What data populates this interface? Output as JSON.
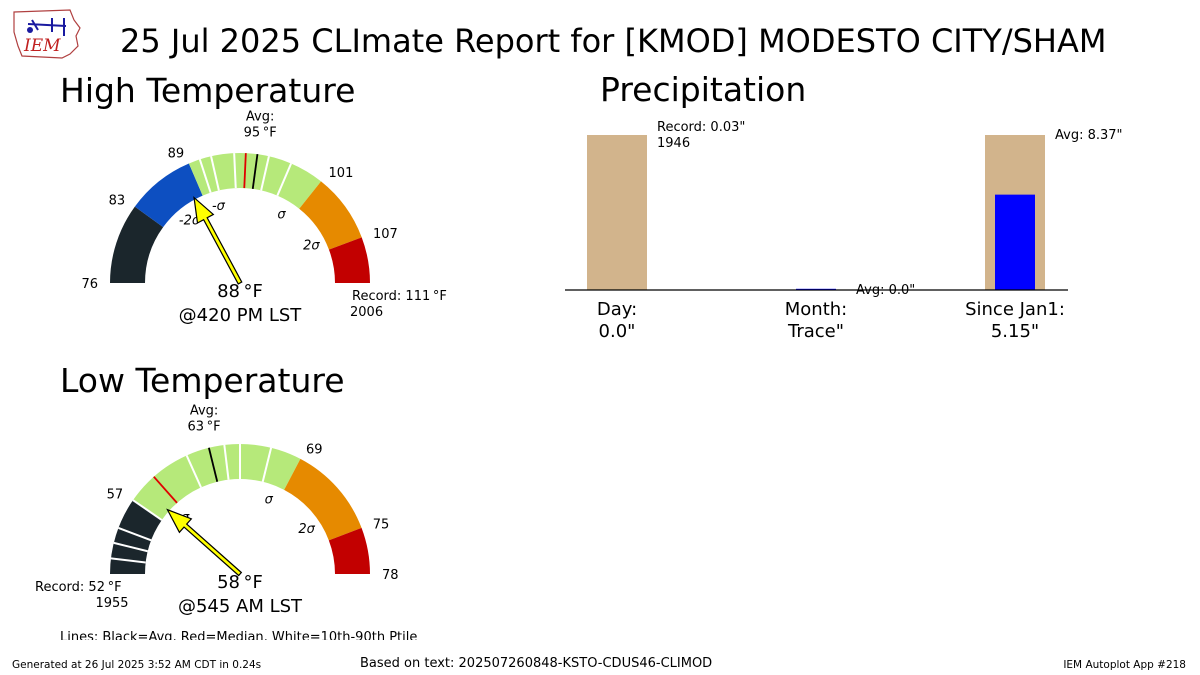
{
  "logo_text": "IEM",
  "title": "25 Jul 2025 CLImate Report for [KMOD] MODESTO CITY/SHAM",
  "footer": {
    "generated": "Generated at 26 Jul 2025 3:52 AM CDT in 0.24s",
    "based_on": "Based on text: 202507260848-KSTO-CDUS46-CLIMOD",
    "app": "IEM Autoplot App #218"
  },
  "legend_note": "Lines: Black=Avg, Red=Median, White=10th-90th Ptile",
  "colors": {
    "below": "#1b262c",
    "minus2sigma": "#0d4fc1",
    "normal": "#b6e97a",
    "plus1sigma": "#e68a00",
    "plus2sigma": "#c20000",
    "needle": "#ffff00",
    "record_bar": "#d2b48c",
    "obs_bar": "#0000ff"
  },
  "chart_data": [
    {
      "type": "gauge",
      "title": "High Temperature",
      "min": 76,
      "max": 111,
      "value": 88,
      "value_label": "88$^\\circ$F",
      "value_text": "88 °F",
      "time_text": "@420 PM LST",
      "avg": 95,
      "avg_label_lines": [
        "Avg:",
        "95 °F"
      ],
      "median": 94,
      "percentile_lines": [
        90,
        91,
        93,
        96,
        98
      ],
      "bands": [
        {
          "from": 76,
          "to": 83,
          "color": "below"
        },
        {
          "from": 83,
          "to": 89,
          "color": "minus2sigma"
        },
        {
          "from": 89,
          "to": 101,
          "color": "normal"
        },
        {
          "from": 101,
          "to": 107,
          "color": "plus1sigma"
        },
        {
          "from": 107,
          "to": 111,
          "color": "plus2sigma"
        }
      ],
      "tick_labels": [
        {
          "value": 76,
          "text": "76"
        },
        {
          "value": 83,
          "text": "83"
        },
        {
          "value": 89,
          "text": "89"
        },
        {
          "value": 101,
          "text": "101"
        },
        {
          "value": 107,
          "text": "107"
        }
      ],
      "sigma_labels": [
        {
          "value": 86,
          "text": "-2σ"
        },
        {
          "value": 90.5,
          "text": "-σ"
        },
        {
          "value": 99.5,
          "text": "σ"
        },
        {
          "value": 105.5,
          "text": "2σ"
        }
      ],
      "record_lines": [
        "Record: 111 °F",
        "2006"
      ],
      "record_side": "right"
    },
    {
      "type": "gauge",
      "title": "Low Temperature",
      "min": 52,
      "max": 78,
      "value": 58,
      "value_text": "58 °F",
      "time_text": "@545 AM LST",
      "avg": 63,
      "avg_label_lines": [
        "Avg:",
        "63 °F"
      ],
      "median": 59,
      "percentile_lines": [
        53,
        54,
        55,
        57,
        61.5,
        64,
        65,
        67
      ],
      "bands": [
        {
          "from": 52,
          "to": 57,
          "color": "below"
        },
        {
          "from": 57,
          "to": 69,
          "color": "normal"
        },
        {
          "from": 69,
          "to": 75,
          "color": "plus1sigma"
        },
        {
          "from": 75,
          "to": 78,
          "color": "plus2sigma"
        }
      ],
      "tick_labels": [
        {
          "value": 57,
          "text": "57"
        },
        {
          "value": 69,
          "text": "69"
        },
        {
          "value": 75,
          "text": "75"
        },
        {
          "value": 78,
          "text": "78"
        }
      ],
      "sigma_labels": [
        {
          "value": 58.5,
          "text": "-σ"
        },
        {
          "value": 68,
          "text": "σ"
        },
        {
          "value": 73,
          "text": "2σ"
        }
      ],
      "record_lines": [
        "Record: 52 °F",
        "1955"
      ],
      "record_side": "left"
    },
    {
      "type": "bar",
      "title": "Precipitation",
      "categories": [
        {
          "lines": [
            "Day:",
            "0.0\""
          ]
        },
        {
          "lines": [
            "Month:",
            "Trace\""
          ]
        },
        {
          "lines": [
            "Since Jan1:",
            "5.15\""
          ]
        }
      ],
      "reference_values": [
        0.03,
        0,
        8.37
      ],
      "observed_values": [
        0.0,
        0.0001,
        5.15
      ],
      "annotations": [
        {
          "index": 0,
          "lines": [
            "Record: 0.03\"",
            "1946"
          ]
        },
        {
          "index": 1,
          "lines": [
            "Avg: 0.0\""
          ]
        },
        {
          "index": 2,
          "lines": [
            "Avg: 8.37\""
          ]
        }
      ]
    }
  ]
}
